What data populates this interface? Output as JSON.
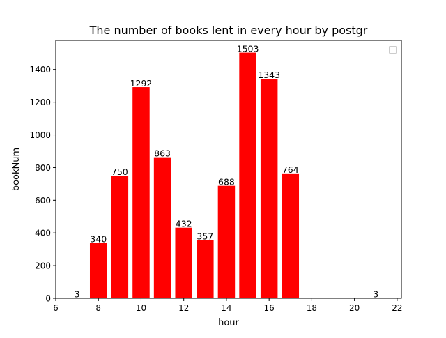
{
  "chart_data": {
    "type": "bar",
    "title": "The number of books lent in every hour by postgr",
    "xlabel": "hour",
    "ylabel": "bookNum",
    "x": [
      7,
      8,
      9,
      10,
      11,
      12,
      13,
      14,
      15,
      16,
      17,
      21
    ],
    "values": [
      3,
      340,
      750,
      1292,
      863,
      432,
      357,
      688,
      1503,
      1343,
      764,
      3
    ],
    "xlim": [
      6,
      22.2
    ],
    "ylim": [
      0,
      1578
    ],
    "xticks": [
      6,
      8,
      10,
      12,
      14,
      16,
      18,
      20,
      22
    ],
    "yticks": [
      0,
      200,
      400,
      600,
      800,
      1000,
      1200,
      1400
    ],
    "bar_color": "#ff0000",
    "grid": false,
    "legend": {
      "placement": "top-right",
      "entries": []
    }
  }
}
